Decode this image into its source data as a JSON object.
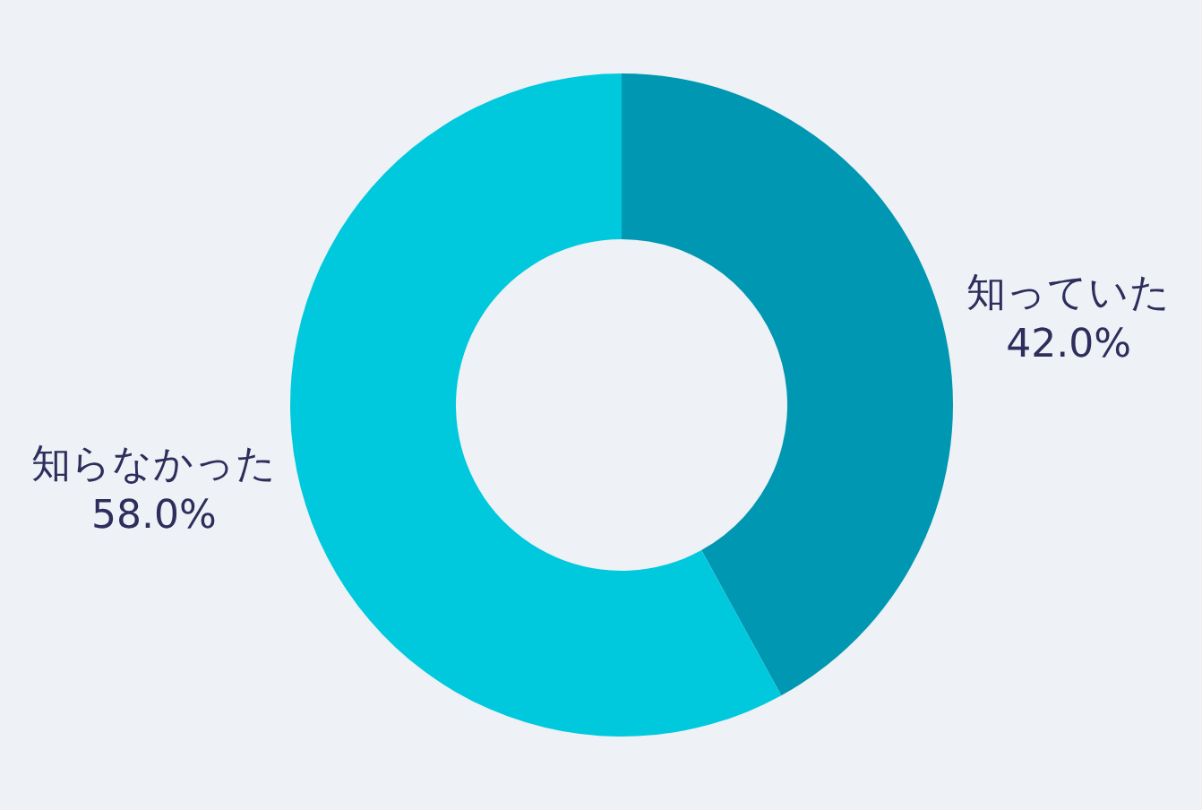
{
  "chart_data": {
    "type": "donut",
    "categories": [
      "知っていた",
      "知らなかった"
    ],
    "values": [
      42,
      58
    ],
    "value_labels": [
      "42.0%",
      "58.0%"
    ],
    "colors": [
      "#0097b2",
      "#00c9dd"
    ]
  }
}
